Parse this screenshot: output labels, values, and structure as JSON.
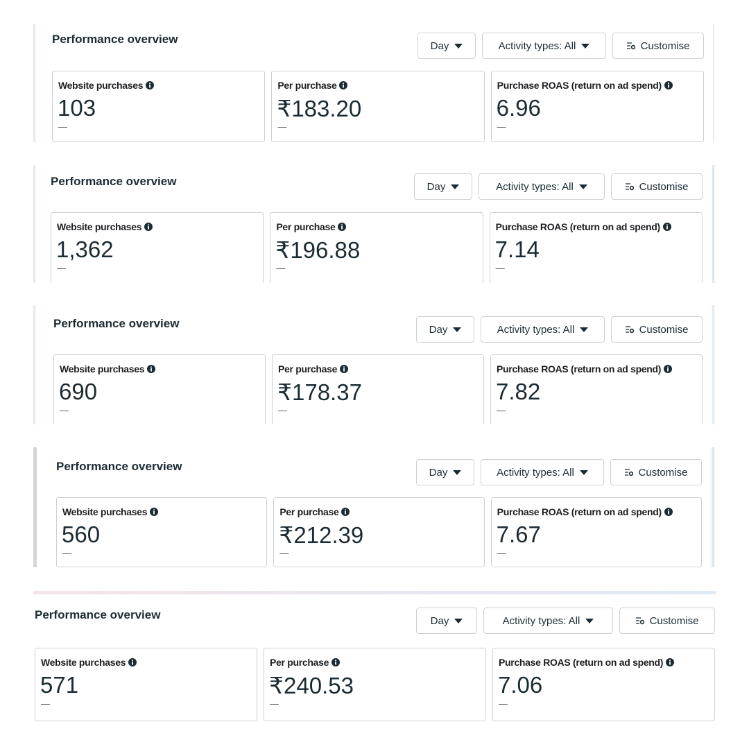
{
  "panels": [
    {
      "title": "Performance overview",
      "controls": [
        "Day",
        "Activity types: All",
        "Customise"
      ],
      "metrics": [
        {
          "label": "Website purchases",
          "value": "103",
          "change": "—"
        },
        {
          "label": "Per purchase",
          "value": "₹183.20",
          "change": "—"
        },
        {
          "label": "Purchase ROAS (return on ad spend)",
          "value": "6.96",
          "change": "—"
        }
      ]
    },
    {
      "title": "Performance overview",
      "controls": [
        "Day",
        "Activity types: All",
        "Customise"
      ],
      "metrics": [
        {
          "label": "Website purchases",
          "value": "1,362",
          "change": "—"
        },
        {
          "label": "Per purchase",
          "value": "₹196.88",
          "change": "—"
        },
        {
          "label": "Purchase ROAS (return on ad spend)",
          "value": "7.14",
          "change": "—"
        }
      ]
    },
    {
      "title": "Performance overview",
      "controls": [
        "Day",
        "Activity types: All",
        "Customise"
      ],
      "metrics": [
        {
          "label": "Website purchases",
          "value": "690",
          "change": "—"
        },
        {
          "label": "Per purchase",
          "value": "₹178.37",
          "change": "—"
        },
        {
          "label": "Purchase ROAS (return on ad spend)",
          "value": "7.82",
          "change": "—"
        }
      ]
    },
    {
      "title": "Performance overview",
      "controls": [
        "Day",
        "Activity types: All",
        "Customise"
      ],
      "metrics": [
        {
          "label": "Website purchases",
          "value": "560",
          "change": "—"
        },
        {
          "label": "Per purchase",
          "value": "₹212.39",
          "change": "—"
        },
        {
          "label": "Purchase ROAS (return on ad spend)",
          "value": "7.67",
          "change": "—"
        }
      ]
    },
    {
      "title": "Performance overview",
      "controls": [
        "Day",
        "Activity types: All",
        "Customise"
      ],
      "metrics": [
        {
          "label": "Website purchases",
          "value": "571",
          "change": "—"
        },
        {
          "label": "Per purchase",
          "value": "₹240.53",
          "change": "—"
        },
        {
          "label": "Purchase ROAS (return on ad spend)",
          "value": "7.06",
          "change": "—"
        }
      ]
    }
  ]
}
